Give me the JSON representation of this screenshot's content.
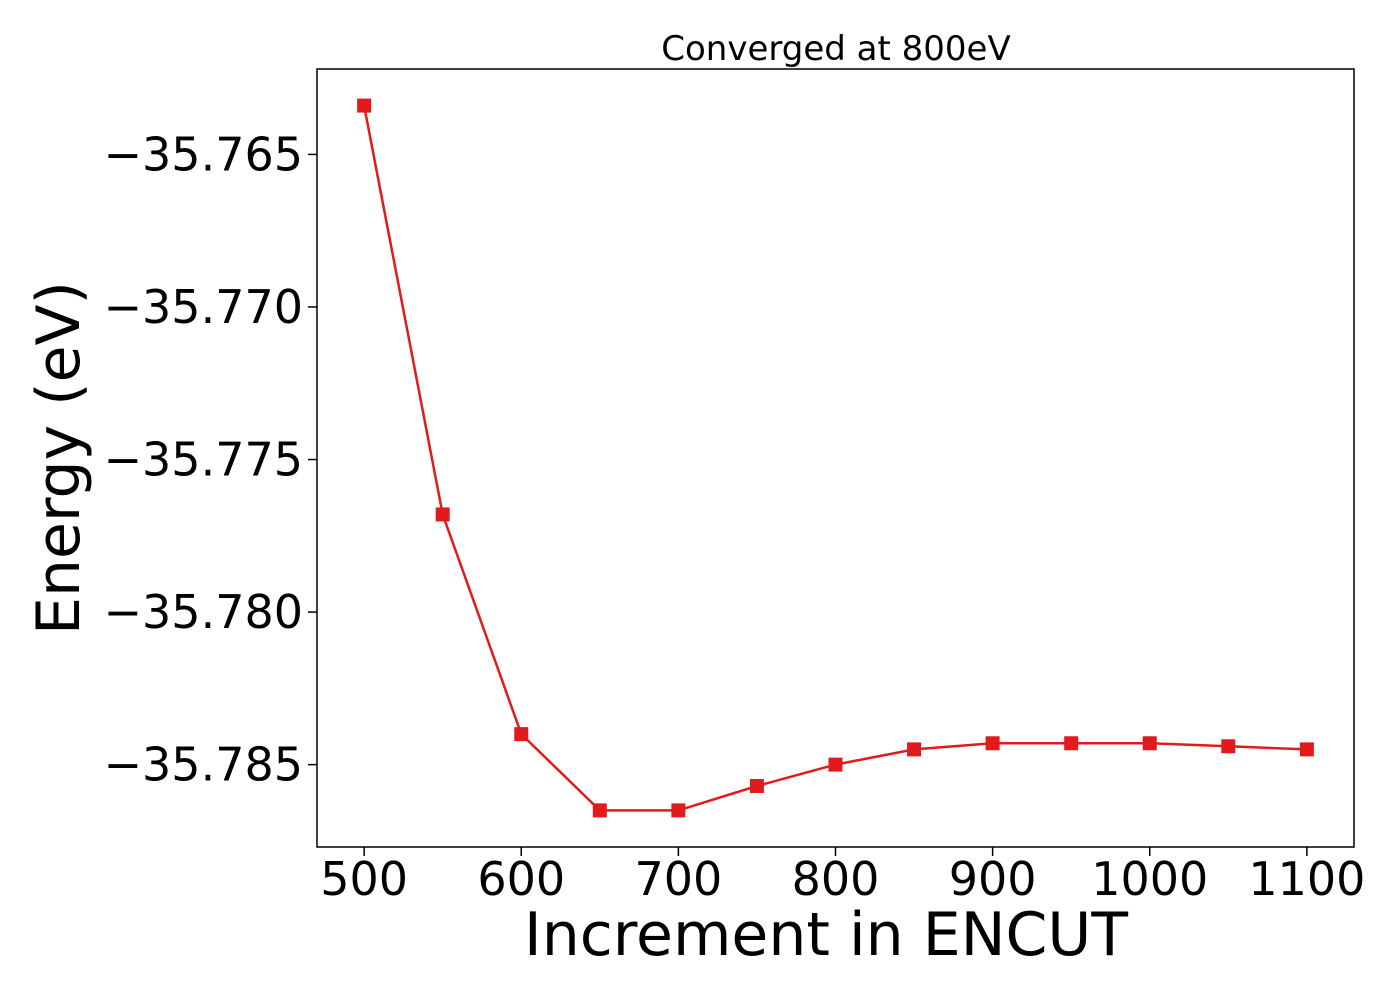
{
  "chart_data": {
    "type": "line",
    "title": "Converged at 800eV",
    "xlabel": "Increment in ENCUT",
    "ylabel": "Energy (eV)",
    "xlim": [
      470,
      1130
    ],
    "ylim": [
      -35.7877,
      -35.7622
    ],
    "xticks": [
      500,
      600,
      700,
      800,
      900,
      1000,
      1100
    ],
    "yticks": [
      -35.765,
      -35.77,
      -35.775,
      -35.78,
      -35.785
    ],
    "ytick_labels": [
      "−35.765",
      "−35.770",
      "−35.775",
      "−35.780",
      "−35.785"
    ],
    "grid": false,
    "marker": "square",
    "color": "#e31a1c",
    "x": [
      500,
      550,
      600,
      650,
      700,
      750,
      800,
      850,
      900,
      950,
      1000,
      1050,
      1100
    ],
    "y": [
      -35.7634,
      -35.7768,
      -35.784,
      -35.7865,
      -35.7865,
      -35.7857,
      -35.785,
      -35.7845,
      -35.7843,
      -35.7843,
      -35.7843,
      -35.7844,
      -35.7845
    ]
  }
}
